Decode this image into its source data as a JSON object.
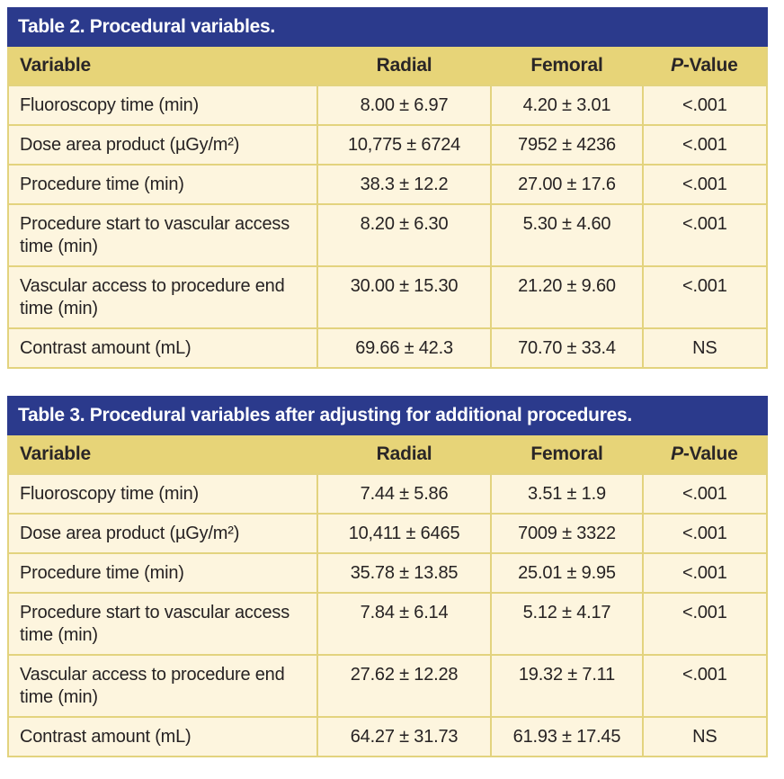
{
  "colors": {
    "title_bar_blue": "#2B3A8C",
    "title_text": "#FFFFFF",
    "header_tan": "#E7D478",
    "grid_border": "#E3D37E",
    "row_cream": "#FDF5DE",
    "body_text": "#262223"
  },
  "tables": [
    {
      "title": "Table 2. Procedural variables.",
      "columns": {
        "variable": "Variable",
        "radial": "Radial",
        "femoral": "Femoral",
        "p_italic": "P",
        "p_rest": "-Value"
      },
      "rows": [
        {
          "variable": "Fluoroscopy time (min)",
          "radial": "8.00 ± 6.97",
          "femoral": "4.20 ± 3.01",
          "p": "<.001"
        },
        {
          "variable": "Dose area product (µGy/m²)",
          "radial": "10,775 ± 6724",
          "femoral": "7952 ± 4236",
          "p": "<.001"
        },
        {
          "variable": "Procedure time (min)",
          "radial": "38.3 ± 12.2",
          "femoral": "27.00 ± 17.6",
          "p": "<.001"
        },
        {
          "variable": "Procedure start to vascular access time (min)",
          "radial": "8.20 ± 6.30",
          "femoral": "5.30 ± 4.60",
          "p": "<.001"
        },
        {
          "variable": "Vascular access to procedure end time (min)",
          "radial": "30.00 ± 15.30",
          "femoral": "21.20 ± 9.60",
          "p": "<.001"
        },
        {
          "variable": "Contrast amount (mL)",
          "radial": "69.66 ± 42.3",
          "femoral": "70.70 ± 33.4",
          "p": "NS"
        }
      ]
    },
    {
      "title": "Table 3. Procedural variables after adjusting for additional procedures.",
      "columns": {
        "variable": "Variable",
        "radial": "Radial",
        "femoral": "Femoral",
        "p_italic": "P",
        "p_rest": "-Value"
      },
      "rows": [
        {
          "variable": "Fluoroscopy time (min)",
          "radial": "7.44 ± 5.86",
          "femoral": "3.51 ± 1.9",
          "p": "<.001"
        },
        {
          "variable": "Dose area product (µGy/m²)",
          "radial": "10,411 ± 6465",
          "femoral": "7009 ± 3322",
          "p": "<.001"
        },
        {
          "variable": "Procedure time (min)",
          "radial": "35.78 ± 13.85",
          "femoral": "25.01 ± 9.95",
          "p": "<.001"
        },
        {
          "variable": "Procedure start to vascular access time (min)",
          "radial": "7.84 ± 6.14",
          "femoral": "5.12 ± 4.17",
          "p": "<.001"
        },
        {
          "variable": "Vascular access to procedure end time (min)",
          "radial": "27.62 ± 12.28",
          "femoral": "19.32 ± 7.11",
          "p": "<.001"
        },
        {
          "variable": "Contrast amount (mL)",
          "radial": "64.27 ± 31.73",
          "femoral": "61.93 ± 17.45",
          "p": "NS"
        }
      ]
    }
  ]
}
